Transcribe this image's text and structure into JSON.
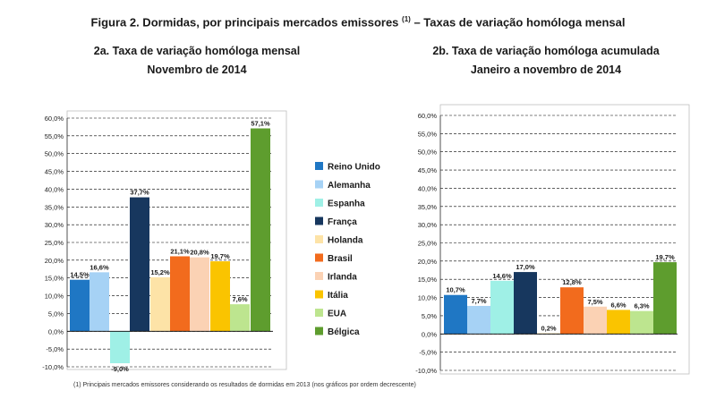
{
  "header": {
    "title": "Figura 2. Dormidas, por principais mercados emissores",
    "title_sup": "(1)",
    "title_suffix": "– Taxas de variação homóloga mensal"
  },
  "footnote": "(1)  Principais mercados emissores considerando os resultados  de dormidas em 2013 (nos gráficos por ordem decrescente)",
  "legend": [
    {
      "name": "Reino Unido",
      "color": "#1f77c4"
    },
    {
      "name": "Alemanha",
      "color": "#a6d2f5"
    },
    {
      "name": "Espanha",
      "color": "#9ff0e6"
    },
    {
      "name": "França",
      "color": "#17375e"
    },
    {
      "name": "Holanda",
      "color": "#fde3a7"
    },
    {
      "name": "Brasil",
      "color": "#f26b1d"
    },
    {
      "name": "Irlanda",
      "color": "#fbd2b4"
    },
    {
      "name": "Itália",
      "color": "#fac400"
    },
    {
      "name": "EUA",
      "color": "#bde58f"
    },
    {
      "name": "Bélgica",
      "color": "#5e9d2e"
    }
  ],
  "chart_data": [
    {
      "type": "bar",
      "title": "2a. Taxa de variação homóloga mensal",
      "subtitle": "Novembro de 2014",
      "categories": [
        "Reino Unido",
        "Alemanha",
        "Espanha",
        "França",
        "Holanda",
        "Brasil",
        "Irlanda",
        "Itália",
        "EUA",
        "Bélgica"
      ],
      "values": [
        14.5,
        16.6,
        -9.0,
        37.7,
        15.2,
        21.1,
        20.8,
        19.7,
        7.6,
        57.1
      ],
      "labels": [
        "14,5%",
        "16,6%",
        "-9,0%",
        "37,7%",
        "15,2%",
        "21,1%",
        "20,8%",
        "19,7%",
        "7,6%",
        "57,1%"
      ],
      "ylim": [
        -10,
        60
      ],
      "yticks": [
        "-10,0%",
        "-5,0%",
        "0,0%",
        "5,0%",
        "10,0%",
        "15,0%",
        "20,0%",
        "25,0%",
        "30,0%",
        "35,0%",
        "40,0%",
        "45,0%",
        "50,0%",
        "55,0%",
        "60,0%"
      ],
      "xlabel": "",
      "ylabel": ""
    },
    {
      "type": "bar",
      "title": "2b. Taxa de variação homóloga acumulada",
      "subtitle": "Janeiro a novembro de 2014",
      "categories": [
        "Reino Unido",
        "Alemanha",
        "Espanha",
        "França",
        "Holanda",
        "Brasil",
        "Irlanda",
        "Itália",
        "EUA",
        "Bélgica"
      ],
      "values": [
        10.7,
        7.7,
        14.6,
        17.0,
        0.2,
        12.8,
        7.5,
        6.6,
        6.3,
        19.7
      ],
      "labels": [
        "10,7%",
        "7,7%",
        "14,6%",
        "17,0%",
        "0,2%",
        "12,8%",
        "7,5%",
        "6,6%",
        "6,3%",
        "19,7%"
      ],
      "ylim": [
        -10,
        60
      ],
      "yticks": [
        "-10,0%",
        "-5,0%",
        "0,0%",
        "5,0%",
        "10,0%",
        "15,0%",
        "20,0%",
        "25,0%",
        "30,0%",
        "35,0%",
        "40,0%",
        "45,0%",
        "50,0%",
        "55,0%",
        "60,0%"
      ],
      "xlabel": "",
      "ylabel": ""
    }
  ]
}
